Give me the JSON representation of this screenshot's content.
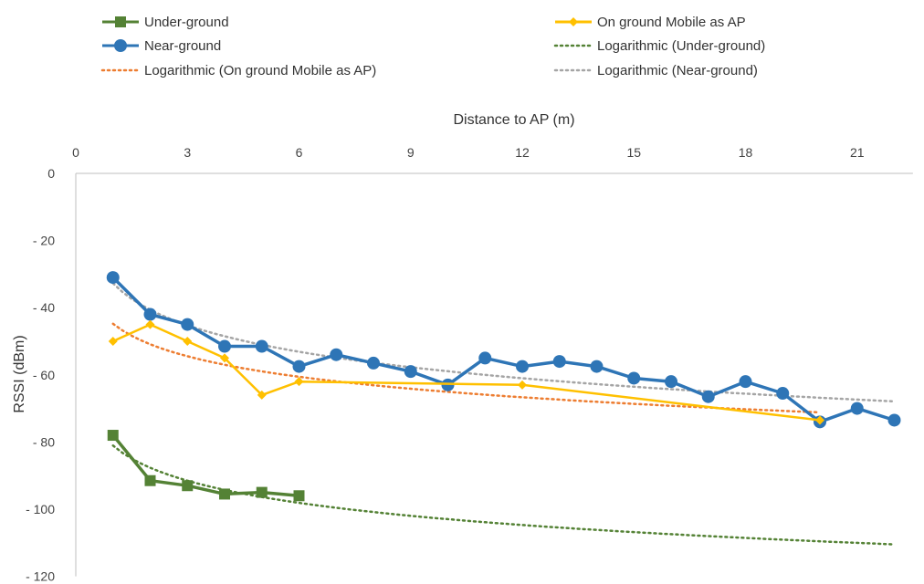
{
  "chart_data": {
    "type": "line",
    "xlabel": "Distance to AP (m)",
    "ylabel": "RSSI (dBm)",
    "xlim": [
      0,
      22.5
    ],
    "ylim": [
      -120,
      0
    ],
    "x_ticks": [
      0,
      3,
      6,
      9,
      12,
      15,
      18,
      21
    ],
    "y_ticks": [
      0,
      -20,
      -40,
      -60,
      -80,
      -100,
      -120
    ],
    "x_tick_labels": [
      "0",
      "3",
      "6",
      "9",
      "12",
      "15",
      "18",
      "21"
    ],
    "y_tick_labels": [
      "0",
      "- 20",
      "- 40",
      "- 60",
      "- 80",
      "- 100",
      "- 120"
    ],
    "x_axis_position": "top",
    "grid": false,
    "legend_position": "top",
    "series": [
      {
        "name": "Under-ground",
        "color": "#548235",
        "marker": "square",
        "x": [
          1,
          2,
          3,
          4,
          5,
          6
        ],
        "y": [
          -78,
          -91.5,
          -93,
          -95.5,
          -95,
          -96
        ]
      },
      {
        "name": "Near-ground",
        "color": "#2e75b6",
        "marker": "circle",
        "x": [
          1,
          2,
          3,
          4,
          5,
          6,
          7,
          8,
          9,
          10,
          11,
          12,
          13,
          14,
          15,
          16,
          17,
          18,
          19,
          20,
          21,
          22
        ],
        "y": [
          -31,
          -42,
          -45,
          -51.5,
          -51.5,
          -57.5,
          -54,
          -56.5,
          -59,
          -63,
          -55,
          -57.5,
          -56,
          -57.5,
          -61,
          -62,
          -66.5,
          -62,
          -65.5,
          -74,
          -70,
          -73.5
        ]
      },
      {
        "name": "On ground Mobile as AP",
        "color": "#ffc000",
        "marker": "diamond",
        "x": [
          1,
          2,
          3,
          4,
          5,
          6,
          12,
          20
        ],
        "y": [
          -50,
          -45,
          -50,
          -55,
          -66,
          -62,
          -63,
          -73.5
        ]
      }
    ],
    "trendlines": [
      {
        "name": "Logarithmic (Under-ground)",
        "of": "Under-ground",
        "color": "#548235",
        "type": "logarithmic",
        "x_range": [
          1,
          22
        ]
      },
      {
        "name": "Logarithmic (On ground Mobile as AP)",
        "of": "On ground Mobile as AP",
        "color": "#ed7d31",
        "type": "logarithmic",
        "x_range": [
          1,
          20
        ]
      },
      {
        "name": "Logarithmic (Near-ground)",
        "of": "Near-ground",
        "color": "#a5a5a5",
        "type": "logarithmic",
        "x_range": [
          1,
          22
        ]
      }
    ],
    "legend": [
      "Under-ground",
      "On ground Mobile as AP",
      "Near-ground",
      "Logarithmic (Under-ground)",
      "Logarithmic (On ground Mobile as AP)",
      "Logarithmic (Near-ground)"
    ]
  }
}
